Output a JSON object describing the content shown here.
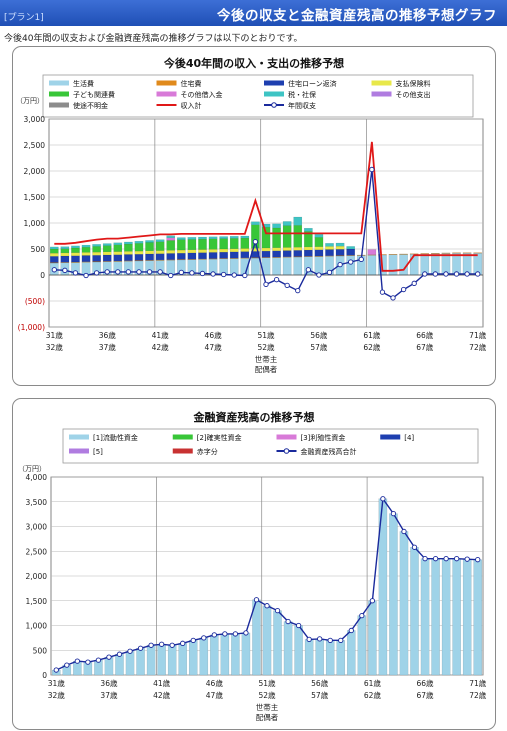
{
  "header": {
    "plan_tag": "[プラン1]",
    "title": "今後の収支と金融資産残高の推移予想グラフ"
  },
  "intro": "今後40年間の収支および金融資産残高の推移グラフは以下のとおりです。",
  "chart_data": [
    {
      "type": "bar",
      "stacked": true,
      "title": "今後40年間の収入・支出の推移予想",
      "unit_label": "（万円）",
      "ylim": [
        -1000,
        3000
      ],
      "yticks": [
        "3,000",
        "2,500",
        "2,000",
        "1,500",
        "1,000",
        "500",
        "0",
        "(500)",
        "(1,000)"
      ],
      "ytick_values": [
        3000,
        2500,
        2000,
        1500,
        1000,
        500,
        0,
        -500,
        -1000
      ],
      "xtick_row1": [
        "31歳",
        "36歳",
        "41歳",
        "46歳",
        "51歳",
        "56歳",
        "61歳",
        "66歳",
        "71歳"
      ],
      "xtick_row2": [
        "32歳",
        "37歳",
        "42歳",
        "47歳",
        "52歳",
        "57歳",
        "62歳",
        "67歳",
        "72歳"
      ],
      "xlabel_row1": "世帯主",
      "xlabel_row2": "配偶者",
      "legend_position": "top",
      "bar_series": [
        {
          "name": "生活費",
          "color": "#9fd3e8",
          "values": [
            230,
            235,
            240,
            245,
            250,
            255,
            260,
            265,
            270,
            275,
            280,
            285,
            290,
            295,
            300,
            305,
            310,
            315,
            320,
            325,
            330,
            335,
            340,
            345,
            350,
            355,
            360,
            365,
            370,
            375,
            380,
            385,
            390,
            395,
            400,
            405,
            410,
            415,
            420,
            420,
            420
          ]
        },
        {
          "name": "住宅費",
          "color": "#e08a1c",
          "values": [
            10,
            10,
            10,
            10,
            10,
            10,
            10,
            10,
            10,
            10,
            10,
            10,
            10,
            10,
            10,
            10,
            10,
            10,
            10,
            10,
            10,
            10,
            10,
            10,
            10,
            10,
            10,
            10,
            10,
            10,
            10,
            10,
            10,
            10,
            10,
            10,
            10,
            10,
            10,
            10,
            10
          ]
        },
        {
          "name": "住宅ローン返済",
          "color": "#1e3fb0",
          "values": [
            120,
            120,
            120,
            120,
            120,
            120,
            120,
            120,
            120,
            120,
            120,
            120,
            120,
            120,
            120,
            120,
            120,
            120,
            120,
            120,
            120,
            120,
            120,
            120,
            120,
            120,
            120,
            120,
            120,
            0,
            0,
            0,
            0,
            0,
            0,
            0,
            0,
            0,
            0,
            0,
            0
          ]
        },
        {
          "name": "支払保険料",
          "color": "#e8e84a",
          "values": [
            60,
            60,
            60,
            60,
            60,
            60,
            60,
            60,
            60,
            60,
            60,
            60,
            60,
            60,
            60,
            60,
            60,
            60,
            60,
            60,
            60,
            60,
            60,
            60,
            60,
            60,
            60,
            60,
            0,
            0,
            0,
            0,
            0,
            0,
            0,
            0,
            0,
            0,
            0,
            0,
            0
          ]
        },
        {
          "name": "子ども関連費",
          "color": "#38c638",
          "values": [
            80,
            80,
            90,
            100,
            110,
            120,
            130,
            140,
            150,
            160,
            170,
            190,
            200,
            200,
            200,
            200,
            200,
            200,
            200,
            450,
            400,
            380,
            420,
            420,
            300,
            180,
            0,
            0,
            0,
            0,
            0,
            0,
            0,
            0,
            0,
            0,
            0,
            0,
            0,
            0,
            0
          ]
        },
        {
          "name": "その他借入金",
          "color": "#d87ad8",
          "values": [
            0,
            0,
            0,
            0,
            0,
            0,
            0,
            0,
            0,
            0,
            0,
            50,
            0,
            0,
            0,
            0,
            0,
            0,
            0,
            0,
            0,
            0,
            0,
            0,
            0,
            0,
            0,
            0,
            0,
            0,
            100,
            0,
            0,
            0,
            0,
            0,
            0,
            0,
            0,
            0,
            0
          ]
        },
        {
          "name": "税・社保",
          "color": "#3ec4c4",
          "values": [
            40,
            40,
            40,
            40,
            40,
            40,
            40,
            40,
            40,
            40,
            40,
            40,
            40,
            40,
            40,
            40,
            40,
            40,
            40,
            60,
            60,
            80,
            80,
            160,
            60,
            60,
            60,
            60,
            50,
            0,
            0,
            0,
            0,
            0,
            0,
            0,
            0,
            0,
            0,
            0,
            0
          ]
        },
        {
          "name": "その他支出",
          "color": "#b07ce0",
          "values": [
            0,
            0,
            0,
            0,
            0,
            0,
            0,
            0,
            0,
            0,
            0,
            0,
            0,
            0,
            0,
            0,
            0,
            0,
            0,
            0,
            0,
            0,
            0,
            0,
            0,
            0,
            0,
            0,
            0,
            0,
            0,
            0,
            0,
            0,
            0,
            0,
            0,
            0,
            0,
            0,
            0
          ]
        },
        {
          "name": "使途不明金",
          "color": "#8c8c8c",
          "values": [
            0,
            0,
            0,
            0,
            0,
            0,
            0,
            0,
            0,
            0,
            0,
            0,
            0,
            0,
            0,
            0,
            0,
            0,
            0,
            0,
            0,
            0,
            0,
            0,
            0,
            0,
            0,
            0,
            0,
            0,
            0,
            0,
            0,
            0,
            0,
            0,
            0,
            0,
            0,
            0,
            0
          ]
        }
      ],
      "line_series": [
        {
          "name": "収入計",
          "color": "#e01818",
          "values": [
            600,
            600,
            620,
            650,
            680,
            700,
            700,
            720,
            740,
            760,
            780,
            780,
            790,
            790,
            790,
            790,
            790,
            790,
            790,
            1430,
            800,
            800,
            800,
            800,
            800,
            800,
            800,
            800,
            800,
            800,
            2560,
            80,
            80,
            100,
            380,
            380,
            380,
            380,
            380,
            380,
            380
          ]
        },
        {
          "name": "年間収支",
          "color": "#1a2a9c",
          "marker": true,
          "values": [
            100,
            90,
            40,
            -10,
            40,
            60,
            60,
            60,
            60,
            60,
            60,
            -10,
            50,
            40,
            30,
            20,
            10,
            0,
            -10,
            640,
            -180,
            -90,
            -200,
            -300,
            100,
            0,
            50,
            200,
            250,
            300,
            2030,
            -330,
            -440,
            -280,
            -160,
            20,
            20,
            20,
            20,
            20,
            20
          ]
        }
      ]
    },
    {
      "type": "bar",
      "stacked": true,
      "title": "金融資産残高の推移予想",
      "unit_label": "（万円）",
      "ylim": [
        0,
        4000
      ],
      "yticks": [
        "4,000",
        "3,500",
        "3,000",
        "2,500",
        "2,000",
        "1,500",
        "1,000",
        "500",
        "0"
      ],
      "ytick_values": [
        4000,
        3500,
        3000,
        2500,
        2000,
        1500,
        1000,
        500,
        0
      ],
      "xtick_row1": [
        "31歳",
        "36歳",
        "41歳",
        "46歳",
        "51歳",
        "56歳",
        "61歳",
        "66歳",
        "71歳"
      ],
      "xtick_row2": [
        "32歳",
        "37歳",
        "42歳",
        "47歳",
        "52歳",
        "57歳",
        "62歳",
        "67歳",
        "72歳"
      ],
      "xlabel_row1": "世帯主",
      "xlabel_row2": "配偶者",
      "legend_position": "top",
      "bar_series": [
        {
          "name": "[1]流動性資金",
          "color": "#9fd3e8",
          "values": [
            100,
            200,
            280,
            260,
            300,
            360,
            420,
            480,
            540,
            600,
            620,
            600,
            640,
            700,
            750,
            810,
            830,
            830,
            850,
            1520,
            1400,
            1300,
            1080,
            1000,
            720,
            730,
            700,
            700,
            900,
            1200,
            1500,
            3560,
            3260,
            2900,
            2580,
            2350,
            2350,
            2350,
            2350,
            2340,
            2330
          ]
        },
        {
          "name": "[2]確実性資金",
          "color": "#38c638",
          "values": [
            0,
            0,
            0,
            0,
            0,
            0,
            0,
            0,
            0,
            0,
            0,
            0,
            0,
            0,
            0,
            0,
            0,
            0,
            0,
            0,
            0,
            0,
            0,
            0,
            0,
            0,
            0,
            0,
            0,
            0,
            0,
            0,
            0,
            0,
            0,
            0,
            0,
            0,
            0,
            0,
            0
          ]
        },
        {
          "name": "[3]利殖性資金",
          "color": "#d87ad8",
          "values": [
            0,
            0,
            0,
            0,
            0,
            0,
            0,
            0,
            0,
            0,
            0,
            0,
            0,
            0,
            0,
            0,
            0,
            0,
            0,
            0,
            0,
            0,
            0,
            0,
            0,
            0,
            0,
            0,
            0,
            0,
            0,
            0,
            0,
            0,
            0,
            0,
            0,
            0,
            0,
            0,
            0
          ]
        },
        {
          "name": "[4]",
          "color": "#1e3fb0",
          "values": [
            0,
            0,
            0,
            0,
            0,
            0,
            0,
            0,
            0,
            0,
            0,
            0,
            0,
            0,
            0,
            0,
            0,
            0,
            0,
            0,
            0,
            0,
            0,
            0,
            0,
            0,
            0,
            0,
            0,
            0,
            0,
            0,
            0,
            0,
            0,
            0,
            0,
            0,
            0,
            0,
            0
          ]
        },
        {
          "name": "[5]",
          "color": "#b07ce0",
          "values": [
            0,
            0,
            0,
            0,
            0,
            0,
            0,
            0,
            0,
            0,
            0,
            0,
            0,
            0,
            0,
            0,
            0,
            0,
            0,
            0,
            0,
            0,
            0,
            0,
            0,
            0,
            0,
            0,
            0,
            0,
            0,
            0,
            0,
            0,
            0,
            0,
            0,
            0,
            0,
            0,
            0
          ]
        },
        {
          "name": "赤字分",
          "color": "#c83232",
          "values": [
            0,
            0,
            0,
            0,
            0,
            0,
            0,
            0,
            0,
            0,
            0,
            0,
            0,
            0,
            0,
            0,
            0,
            0,
            0,
            0,
            0,
            0,
            0,
            0,
            0,
            0,
            0,
            0,
            0,
            0,
            0,
            0,
            0,
            0,
            0,
            0,
            0,
            0,
            0,
            0,
            0
          ]
        }
      ],
      "line_series": [
        {
          "name": "金融資産残高合計",
          "color": "#1a2a9c",
          "marker": true,
          "values": [
            100,
            200,
            280,
            260,
            300,
            360,
            420,
            480,
            540,
            600,
            620,
            600,
            640,
            700,
            750,
            810,
            830,
            830,
            850,
            1520,
            1400,
            1300,
            1080,
            1000,
            720,
            730,
            700,
            700,
            900,
            1200,
            1500,
            3560,
            3260,
            2900,
            2580,
            2350,
            2350,
            2350,
            2350,
            2340,
            2330
          ]
        }
      ]
    }
  ]
}
